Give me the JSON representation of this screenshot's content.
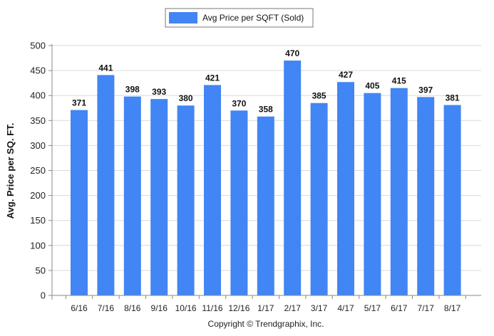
{
  "chart_data": {
    "type": "bar",
    "categories": [
      "6/16",
      "7/16",
      "8/16",
      "9/16",
      "10/16",
      "11/16",
      "12/16",
      "1/17",
      "2/17",
      "3/17",
      "4/17",
      "5/17",
      "6/17",
      "7/17",
      "8/17"
    ],
    "series": [
      {
        "name": "Avg Price per SQFT (Sold)",
        "values": [
          371,
          441,
          398,
          393,
          380,
          421,
          370,
          358,
          470,
          385,
          427,
          405,
          415,
          397,
          381
        ],
        "color": "#4285f4"
      }
    ],
    "ylabel": "Avg. Price per SQ. FT.",
    "xlabel": "",
    "ylim": [
      0,
      500
    ],
    "yticks": [
      0,
      50,
      100,
      150,
      200,
      250,
      300,
      350,
      400,
      450,
      500
    ],
    "grid": true,
    "legend_position": "top-center",
    "data_labels": true
  },
  "footer": {
    "copyright": "Copyright © Trendgraphix, Inc."
  }
}
